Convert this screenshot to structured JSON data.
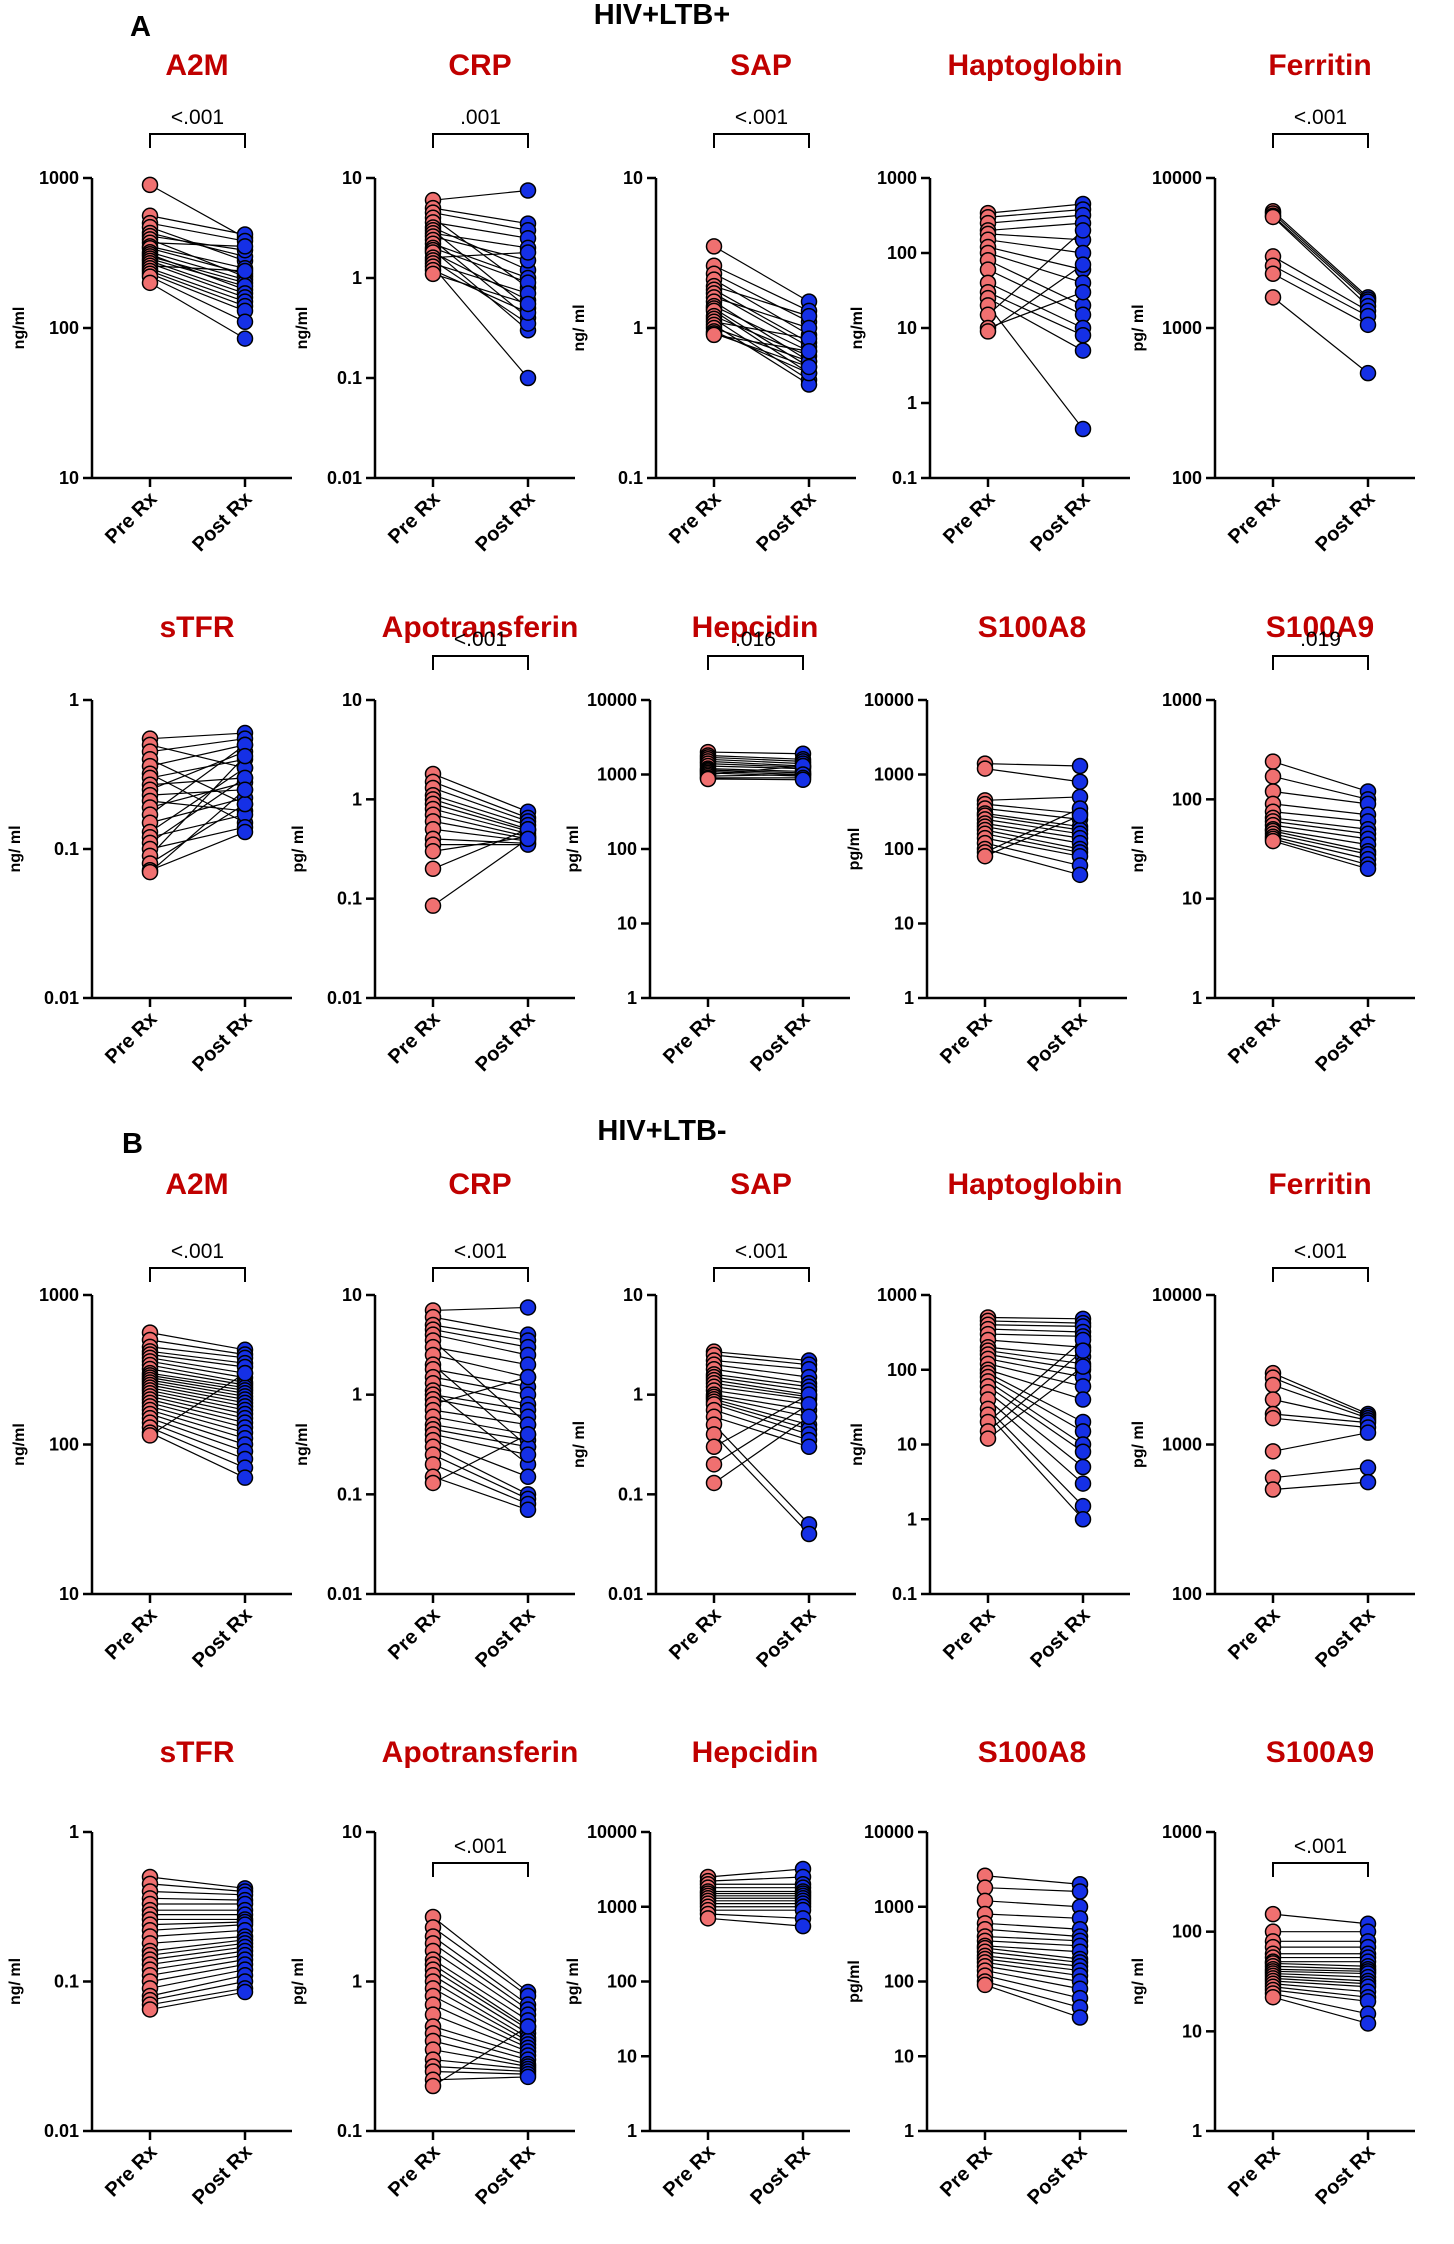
{
  "colors": {
    "title": "#c00000",
    "group": "#1a3fe0",
    "pre": "#f07070",
    "post": "#1530e6",
    "line": "#000000"
  },
  "panels": [
    {
      "letter": "A",
      "group": "HIV+LTB+"
    },
    {
      "letter": "B",
      "group": "HIV+LTB-"
    }
  ],
  "x_labels": [
    "Pre Rx",
    "Post Rx"
  ],
  "chart_data": [
    {
      "id": "A-A2M",
      "type": "paired-dot",
      "title": "A2M",
      "ylabel": "ng/ml",
      "ylim": [
        10,
        1000
      ],
      "yticks": [
        "10",
        "100",
        "1000"
      ],
      "pvalue": "<.001",
      "pre": [
        900,
        560,
        500,
        470,
        430,
        410,
        390,
        370,
        350,
        340,
        320,
        310,
        300,
        290,
        280,
        270,
        260,
        250,
        240,
        230,
        220,
        200
      ],
      "post": [
        400,
        420,
        380,
        280,
        300,
        330,
        220,
        350,
        250,
        230,
        210,
        180,
        200,
        190,
        170,
        160,
        240,
        150,
        140,
        130,
        110,
        85
      ]
    },
    {
      "id": "A-CRP",
      "type": "paired-dot",
      "title": "CRP",
      "ylabel": "ng/ml",
      "ylim": [
        0.01,
        10
      ],
      "yticks": [
        "0.01",
        "0.1",
        "1",
        "10"
      ],
      "pvalue": ".001",
      "pre": [
        6.0,
        5.0,
        4.5,
        4.0,
        3.6,
        3.2,
        3.0,
        2.8,
        2.6,
        2.4,
        2.2,
        2.0,
        1.9,
        1.8,
        1.6,
        1.5,
        1.4,
        1.3,
        1.2,
        1.1
      ],
      "post": [
        7.5,
        3.5,
        3.0,
        0.8,
        2.5,
        1.2,
        0.5,
        2.0,
        1.5,
        0.4,
        1.0,
        0.9,
        0.3,
        0.6,
        1.8,
        0.35,
        0.7,
        0.1,
        0.45,
        0.55
      ]
    },
    {
      "id": "A-SAP",
      "type": "paired-dot",
      "title": "SAP",
      "ylabel": "ng/ ml",
      "ylim": [
        0.1,
        10
      ],
      "yticks": [
        "0.1",
        "1",
        "10"
      ],
      "pvalue": "<.001",
      "pre": [
        3.5,
        2.6,
        2.3,
        2.1,
        1.9,
        1.8,
        1.7,
        1.6,
        1.5,
        1.4,
        1.35,
        1.3,
        1.2,
        1.15,
        1.1,
        1.05,
        1.0,
        0.95,
        0.92,
        0.9
      ],
      "post": [
        1.5,
        1.3,
        1.1,
        0.9,
        1.2,
        0.8,
        0.75,
        1.0,
        0.6,
        0.7,
        0.55,
        0.5,
        0.65,
        0.45,
        0.85,
        0.42,
        0.6,
        0.5,
        0.55,
        0.7
      ]
    },
    {
      "id": "A-Haptoglobin",
      "type": "paired-dot",
      "title": "Haptoglobin",
      "ylabel": "ng/ml",
      "ylim": [
        0.1,
        1000
      ],
      "yticks": [
        "0.1",
        "1",
        "10",
        "100",
        "1000"
      ],
      "pvalue": "",
      "pre": [
        340,
        300,
        250,
        200,
        180,
        150,
        120,
        100,
        80,
        60,
        40,
        30,
        25,
        20,
        15,
        10,
        9
      ],
      "post": [
        450,
        380,
        320,
        250,
        150,
        100,
        60,
        40,
        20,
        15,
        10,
        8,
        5,
        0.45,
        200,
        30,
        70
      ]
    },
    {
      "id": "A-Ferritin",
      "type": "paired-dot",
      "title": "Ferritin",
      "ylabel": "pg/ ml",
      "ylim": [
        100,
        10000
      ],
      "yticks": [
        "100",
        "1000",
        "10000"
      ],
      "pvalue": "<.001",
      "pre": [
        6000,
        5800,
        5600,
        5500,
        3000,
        2600,
        2300,
        1600
      ],
      "post": [
        1600,
        1550,
        1500,
        1400,
        1300,
        1200,
        1050,
        500
      ]
    },
    {
      "id": "A-sTFR",
      "type": "paired-dot",
      "title": "sTFR",
      "ylabel": "ng/ ml",
      "ylim": [
        0.01,
        1
      ],
      "yticks": [
        "0.01",
        "0.1",
        "1"
      ],
      "pvalue": "",
      "pre": [
        0.55,
        0.5,
        0.45,
        0.4,
        0.36,
        0.32,
        0.3,
        0.27,
        0.25,
        0.23,
        0.21,
        0.19,
        0.17,
        0.15,
        0.13,
        0.12,
        0.11,
        0.1,
        0.09,
        0.08,
        0.072,
        0.07
      ],
      "post": [
        0.6,
        0.35,
        0.55,
        0.2,
        0.5,
        0.15,
        0.4,
        0.3,
        0.45,
        0.25,
        0.18,
        0.28,
        0.5,
        0.22,
        0.35,
        0.17,
        0.3,
        0.14,
        0.42,
        0.2,
        0.13,
        0.25
      ]
    },
    {
      "id": "A-Apotransferin",
      "type": "paired-dot",
      "title": "Apotransferin",
      "ylabel": "pg/ ml",
      "ylim": [
        0.01,
        10
      ],
      "yticks": [
        "0.01",
        "0.1",
        "1",
        "10"
      ],
      "pvalue": "<.001",
      "pre": [
        1.8,
        1.5,
        1.3,
        1.1,
        1.0,
        0.9,
        0.8,
        0.7,
        0.6,
        0.5,
        0.4,
        0.35,
        0.3,
        0.2,
        0.085
      ],
      "post": [
        0.75,
        0.65,
        0.6,
        0.55,
        0.5,
        0.48,
        0.45,
        0.42,
        0.4,
        0.38,
        0.36,
        0.35,
        0.42,
        0.5,
        0.4
      ]
    },
    {
      "id": "A-Hepcidin",
      "type": "paired-dot",
      "title": "Hepcidin",
      "ylabel": "pg/ ml",
      "ylim": [
        1,
        10000
      ],
      "yticks": [
        "1",
        "10",
        "100",
        "1000",
        "10000"
      ],
      "pvalue": ".016",
      "pre": [
        2000,
        1800,
        1700,
        1600,
        1500,
        1400,
        1300,
        1200,
        1150,
        1100,
        1050,
        1000,
        950,
        900,
        870
      ],
      "post": [
        1900,
        1600,
        1500,
        1400,
        1300,
        1250,
        1200,
        1100,
        1050,
        1000,
        950,
        1300,
        1000,
        900,
        850
      ]
    },
    {
      "id": "A-S100A8",
      "type": "paired-dot",
      "title": "S100A8",
      "ylabel": "pg/ml",
      "ylim": [
        1,
        10000
      ],
      "yticks": [
        "1",
        "10",
        "100",
        "1000",
        "10000"
      ],
      "pvalue": "",
      "pre": [
        1400,
        1200,
        450,
        400,
        350,
        300,
        280,
        250,
        220,
        200,
        180,
        160,
        140,
        120,
        100,
        90,
        80
      ],
      "post": [
        1300,
        800,
        500,
        300,
        250,
        200,
        180,
        160,
        140,
        120,
        100,
        90,
        80,
        60,
        45,
        350,
        280
      ]
    },
    {
      "id": "A-S100A9",
      "type": "paired-dot",
      "title": "S100A9",
      "ylabel": "ng/ ml",
      "ylim": [
        1,
        1000
      ],
      "yticks": [
        "1",
        "10",
        "100",
        "1000"
      ],
      "pvalue": ".019",
      "pre": [
        240,
        170,
        120,
        90,
        75,
        65,
        60,
        55,
        50,
        48,
        45,
        42,
        40,
        38
      ],
      "post": [
        120,
        100,
        90,
        70,
        60,
        50,
        45,
        40,
        35,
        30,
        28,
        25,
        22,
        20
      ]
    },
    {
      "id": "B-A2M",
      "type": "paired-dot",
      "title": "A2M",
      "ylabel": "ng/ml",
      "ylim": [
        10,
        1000
      ],
      "yticks": [
        "10",
        "100",
        "1000"
      ],
      "pvalue": "<.001",
      "pre": [
        560,
        500,
        450,
        420,
        400,
        380,
        360,
        340,
        320,
        300,
        290,
        280,
        270,
        260,
        250,
        240,
        230,
        220,
        210,
        200,
        190,
        180,
        170,
        160,
        150,
        140,
        130,
        120,
        115
      ],
      "post": [
        430,
        400,
        380,
        350,
        330,
        300,
        280,
        260,
        250,
        240,
        230,
        220,
        210,
        200,
        190,
        180,
        170,
        160,
        150,
        140,
        130,
        120,
        110,
        100,
        90,
        80,
        70,
        60,
        300
      ]
    },
    {
      "id": "B-CRP",
      "type": "paired-dot",
      "title": "CRP",
      "ylabel": "ng/ml",
      "ylim": [
        0.01,
        10
      ],
      "yticks": [
        "0.01",
        "0.1",
        "1",
        "10"
      ],
      "pvalue": "<.001",
      "pre": [
        7,
        6,
        5,
        4.5,
        4,
        3.5,
        3,
        2.5,
        2,
        1.8,
        1.5,
        1.3,
        1.1,
        1,
        0.9,
        0.8,
        0.7,
        0.6,
        0.5,
        0.45,
        0.4,
        0.35,
        0.3,
        0.25,
        0.2,
        0.15,
        0.13
      ],
      "post": [
        7.5,
        4,
        3.5,
        3,
        2.5,
        0.5,
        2,
        1.5,
        0.3,
        1.2,
        1,
        0.8,
        0.2,
        0.7,
        0.6,
        1.5,
        0.5,
        0.4,
        0.35,
        0.3,
        0.25,
        0.15,
        0.1,
        0.09,
        0.08,
        0.07,
        0.4
      ]
    },
    {
      "id": "B-SAP",
      "type": "paired-dot",
      "title": "SAP",
      "ylabel": "ng/ ml",
      "ylim": [
        0.01,
        10
      ],
      "yticks": [
        "0.01",
        "0.1",
        "1",
        "10"
      ],
      "pvalue": "<.001",
      "pre": [
        2.7,
        2.5,
        2.2,
        2,
        1.8,
        1.6,
        1.5,
        1.4,
        1.3,
        1.2,
        1.1,
        1,
        0.95,
        0.9,
        0.85,
        0.8,
        0.7,
        0.6,
        0.5,
        0.4,
        0.3,
        0.2,
        0.13
      ],
      "post": [
        2.2,
        2,
        1.8,
        1.5,
        1.3,
        1.2,
        1.1,
        1,
        0.95,
        0.9,
        0.8,
        0.7,
        0.6,
        0.5,
        0.45,
        0.4,
        0.35,
        0.3,
        0.05,
        0.04,
        1.0,
        0.8,
        0.6
      ]
    },
    {
      "id": "B-Haptoglobin",
      "type": "paired-dot",
      "title": "Haptoglobin",
      "ylabel": "ng/ml",
      "ylim": [
        0.1,
        1000
      ],
      "yticks": [
        "0.1",
        "1",
        "10",
        "100",
        "1000"
      ],
      "pvalue": "",
      "pre": [
        500,
        450,
        400,
        350,
        300,
        250,
        200,
        180,
        160,
        140,
        120,
        100,
        90,
        80,
        70,
        60,
        50,
        40,
        30,
        25,
        20,
        15,
        12
      ],
      "post": [
        480,
        420,
        380,
        320,
        280,
        200,
        150,
        120,
        100,
        80,
        60,
        40,
        20,
        15,
        10,
        8,
        5,
        3,
        1.5,
        1,
        250,
        180,
        110
      ]
    },
    {
      "id": "B-Ferritin",
      "type": "paired-dot",
      "title": "Ferritin",
      "ylabel": "pg/ ml",
      "ylim": [
        100,
        10000
      ],
      "yticks": [
        "100",
        "1000",
        "10000"
      ],
      "pvalue": "<.001",
      "pre": [
        3000,
        2800,
        2500,
        2000,
        1600,
        1500,
        900,
        600,
        500
      ],
      "post": [
        1600,
        1550,
        1500,
        1450,
        1400,
        1300,
        1200,
        700,
        560
      ]
    },
    {
      "id": "B-sTFR",
      "type": "paired-dot",
      "title": "sTFR",
      "ylabel": "ng/ ml",
      "ylim": [
        0.01,
        1
      ],
      "yticks": [
        "0.01",
        "0.1",
        "1"
      ],
      "pvalue": "",
      "pre": [
        0.5,
        0.45,
        0.4,
        0.36,
        0.33,
        0.3,
        0.28,
        0.26,
        0.24,
        0.22,
        0.2,
        0.18,
        0.16,
        0.15,
        0.14,
        0.13,
        0.12,
        0.11,
        0.1,
        0.09,
        0.08,
        0.075,
        0.07,
        0.065
      ],
      "post": [
        0.42,
        0.4,
        0.38,
        0.35,
        0.33,
        0.3,
        0.28,
        0.26,
        0.25,
        0.24,
        0.22,
        0.2,
        0.19,
        0.18,
        0.17,
        0.16,
        0.15,
        0.14,
        0.13,
        0.12,
        0.11,
        0.1,
        0.09,
        0.085
      ]
    },
    {
      "id": "B-Apotransferin",
      "type": "paired-dot",
      "title": "Apotransferin",
      "ylabel": "pg/ ml",
      "ylim": [
        0.1,
        10
      ],
      "yticks": [
        "0.1",
        "1",
        "10"
      ],
      "pvalue": "<.001",
      "pre": [
        2.7,
        2.3,
        2,
        1.8,
        1.6,
        1.4,
        1.3,
        1.2,
        1.1,
        1,
        0.9,
        0.8,
        0.7,
        0.6,
        0.5,
        0.45,
        0.4,
        0.35,
        0.3,
        0.27,
        0.25,
        0.22,
        0.2
      ],
      "post": [
        0.85,
        0.8,
        0.7,
        0.65,
        0.6,
        0.55,
        0.5,
        0.48,
        0.45,
        0.42,
        0.4,
        0.38,
        0.36,
        0.34,
        0.32,
        0.3,
        0.28,
        0.27,
        0.26,
        0.25,
        0.24,
        0.23,
        0.5
      ]
    },
    {
      "id": "B-Hepcidin",
      "type": "paired-dot",
      "title": "Hepcidin",
      "ylabel": "pg/ ml",
      "ylim": [
        1,
        10000
      ],
      "yticks": [
        "1",
        "10",
        "100",
        "1000",
        "10000"
      ],
      "pvalue": "",
      "pre": [
        2500,
        2200,
        2000,
        1800,
        1600,
        1500,
        1400,
        1300,
        1200,
        1100,
        1000,
        900,
        800,
        700
      ],
      "post": [
        3200,
        2500,
        2000,
        1800,
        1600,
        1500,
        1400,
        1300,
        1200,
        1100,
        1000,
        900,
        700,
        550
      ]
    },
    {
      "id": "B-S100A8",
      "type": "paired-dot",
      "title": "S100A8",
      "ylabel": "pg/ml",
      "ylim": [
        1,
        10000
      ],
      "yticks": [
        "1",
        "10",
        "100",
        "1000",
        "10000"
      ],
      "pvalue": "",
      "pre": [
        2600,
        1800,
        1200,
        800,
        600,
        500,
        400,
        350,
        300,
        280,
        250,
        220,
        200,
        180,
        160,
        140,
        120,
        100,
        90
      ],
      "post": [
        2000,
        1600,
        1000,
        700,
        500,
        400,
        350,
        300,
        250,
        200,
        180,
        160,
        140,
        120,
        100,
        80,
        60,
        45,
        33
      ]
    },
    {
      "id": "B-S100A9",
      "type": "paired-dot",
      "title": "S100A9",
      "ylabel": "ng/ ml",
      "ylim": [
        1,
        1000
      ],
      "yticks": [
        "1",
        "10",
        "100",
        "1000"
      ],
      "pvalue": "<.001",
      "pre": [
        150,
        100,
        80,
        70,
        60,
        55,
        50,
        48,
        45,
        42,
        40,
        38,
        36,
        34,
        32,
        30,
        28,
        26,
        24,
        22
      ],
      "post": [
        120,
        100,
        80,
        70,
        60,
        55,
        50,
        45,
        42,
        40,
        38,
        35,
        32,
        30,
        28,
        25,
        22,
        20,
        15,
        12
      ]
    }
  ]
}
